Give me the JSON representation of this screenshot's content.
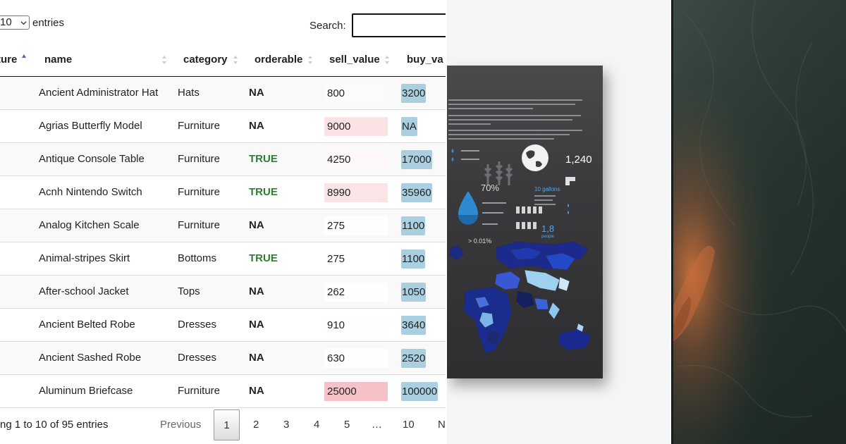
{
  "length_menu": {
    "value": "10",
    "suffix": "entries"
  },
  "search": {
    "label": "Search:"
  },
  "columns": [
    "ture",
    "name",
    "category",
    "orderable",
    "sell_value",
    "buy_va"
  ],
  "rows": [
    {
      "name": "Ancient Administrator Hat",
      "category": "Hats",
      "orderable": "NA",
      "sell": "800",
      "buy": "3200"
    },
    {
      "name": "Agrias Butterfly Model",
      "category": "Furniture",
      "orderable": "NA",
      "sell": "9000",
      "buy": "NA"
    },
    {
      "name": "Antique Console Table",
      "category": "Furniture",
      "orderable": "TRUE",
      "sell": "4250",
      "buy": "17000"
    },
    {
      "name": "Acnh Nintendo Switch",
      "category": "Furniture",
      "orderable": "TRUE",
      "sell": "8990",
      "buy": "35960"
    },
    {
      "name": "Analog Kitchen Scale",
      "category": "Furniture",
      "orderable": "NA",
      "sell": "275",
      "buy": "1100"
    },
    {
      "name": "Animal-stripes Skirt",
      "category": "Bottoms",
      "orderable": "TRUE",
      "sell": "275",
      "buy": "1100"
    },
    {
      "name": "After-school Jacket",
      "category": "Tops",
      "orderable": "NA",
      "sell": "262",
      "buy": "1050"
    },
    {
      "name": "Ancient Belted Robe",
      "category": "Dresses",
      "orderable": "NA",
      "sell": "910",
      "buy": "3640"
    },
    {
      "name": "Ancient Sashed Robe",
      "category": "Dresses",
      "orderable": "NA",
      "sell": "630",
      "buy": "2520"
    },
    {
      "name": "Aluminum Briefcase",
      "category": "Furniture",
      "orderable": "NA",
      "sell": "25000",
      "buy": "100000"
    }
  ],
  "sell_bg": [
    "#fbfbfb",
    "#fbe3e5",
    "#fdf7f7",
    "#fbe4e6",
    "#fefefe",
    "#ffffff",
    "#fefefe",
    "#fefefe",
    "#fefefe",
    "#f4c2c7"
  ],
  "footer": {
    "info": "ng 1 to 10 of 95 entries",
    "previous": "Previous",
    "pages": [
      "1",
      "2",
      "3",
      "4",
      "5",
      "…",
      "10"
    ],
    "next_partial": "N"
  },
  "poster": {
    "stat_1240": "1,240",
    "stat_70": "70%",
    "stat_10gal": "10 gallons",
    "stat_18": "1,8",
    "stat_people": "people",
    "stat_001": "> 0.01%"
  },
  "colors": {
    "accent_green": "#2e7d32",
    "buy_blue": "#a9cfe0",
    "header_rule": "#111111"
  }
}
